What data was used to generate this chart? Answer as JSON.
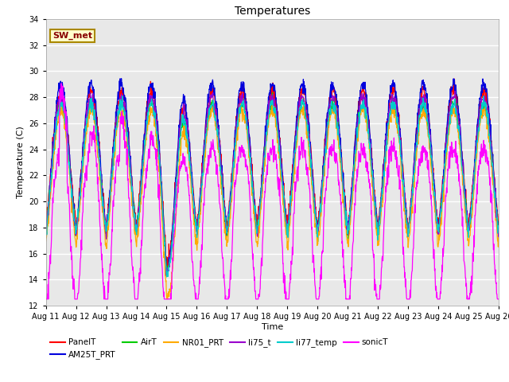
{
  "title": "Temperatures",
  "xlabel": "Time",
  "ylabel": "Temperature (C)",
  "ylim": [
    12,
    34
  ],
  "yticks": [
    12,
    14,
    16,
    18,
    20,
    22,
    24,
    26,
    28,
    30,
    32,
    34
  ],
  "n_days": 15,
  "xtick_labels": [
    "Aug 11",
    "Aug 12",
    "Aug 13",
    "Aug 14",
    "Aug 15",
    "Aug 16",
    "Aug 17",
    "Aug 18",
    "Aug 19",
    "Aug 20",
    "Aug 21",
    "Aug 22",
    "Aug 23",
    "Aug 24",
    "Aug 25",
    "Aug 26"
  ],
  "series": [
    {
      "name": "PanelT",
      "color": "#ff0000"
    },
    {
      "name": "AM25T_PRT",
      "color": "#0000dd"
    },
    {
      "name": "AirT",
      "color": "#00cc00"
    },
    {
      "name": "NR01_PRT",
      "color": "#ffaa00"
    },
    {
      "name": "li75_t",
      "color": "#9900cc"
    },
    {
      "name": "li77_temp",
      "color": "#00cccc"
    },
    {
      "name": "sonicT",
      "color": "#ff00ff"
    }
  ],
  "legend_box_label": "SW_met",
  "legend_box_facecolor": "#ffffcc",
  "legend_box_edgecolor": "#aa8800",
  "plot_bg_color": "#e8e8e8",
  "fig_bg_color": "#ffffff",
  "grid_color": "#ffffff",
  "linewidth": 0.9,
  "figsize": [
    6.4,
    4.8
  ],
  "dpi": 100
}
